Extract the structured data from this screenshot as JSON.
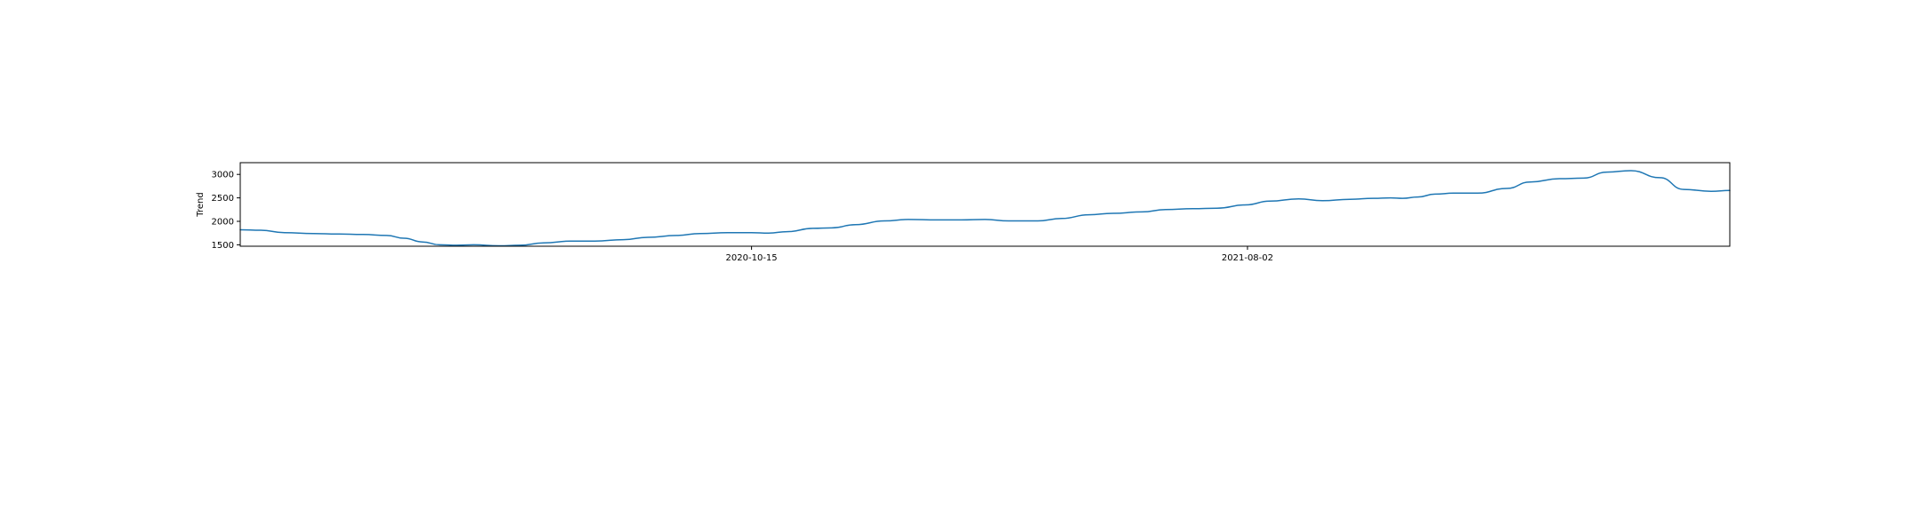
{
  "chart_data": {
    "type": "line",
    "title": "",
    "xlabel": "",
    "ylabel": "Trend",
    "grid": false,
    "legend": "none",
    "line_color": "#1f77b4",
    "x_range": [
      "2019-12-20",
      "2022-05-12"
    ],
    "ylim": [
      1470,
      3250
    ],
    "y_ticks": [
      1500,
      2000,
      2500,
      3000
    ],
    "x_ticks": [
      "2020-10-15",
      "2021-08-02"
    ],
    "series": [
      {
        "x": [
          "2019-12-20",
          "2020-01-01",
          "2020-01-15",
          "2020-02-01",
          "2020-02-15",
          "2020-03-01",
          "2020-03-15",
          "2020-03-25",
          "2020-04-05",
          "2020-04-15",
          "2020-04-25",
          "2020-05-05",
          "2020-05-20",
          "2020-06-01",
          "2020-06-15",
          "2020-07-01",
          "2020-07-15",
          "2020-08-01",
          "2020-08-15",
          "2020-09-01",
          "2020-09-15",
          "2020-10-01",
          "2020-10-15",
          "2020-10-25",
          "2020-11-05",
          "2020-11-20",
          "2020-12-01",
          "2020-12-15",
          "2021-01-01",
          "2021-01-15",
          "2021-02-01",
          "2021-02-15",
          "2021-03-01",
          "2021-03-15",
          "2021-04-01",
          "2021-04-15",
          "2021-05-01",
          "2021-05-15",
          "2021-06-01",
          "2021-06-15",
          "2021-07-01",
          "2021-07-15",
          "2021-08-01",
          "2021-08-15",
          "2021-09-01",
          "2021-09-15",
          "2021-10-01",
          "2021-10-15",
          "2021-10-25",
          "2021-11-01",
          "2021-11-10",
          "2021-11-20",
          "2021-12-01",
          "2021-12-15",
          "2022-01-01",
          "2022-01-15",
          "2022-02-01",
          "2022-02-15",
          "2022-03-01",
          "2022-03-15",
          "2022-04-01",
          "2022-04-15",
          "2022-05-01",
          "2022-05-12"
        ],
        "values": [
          1820,
          1810,
          1760,
          1740,
          1730,
          1720,
          1700,
          1640,
          1560,
          1500,
          1490,
          1500,
          1480,
          1490,
          1540,
          1580,
          1580,
          1610,
          1660,
          1700,
          1740,
          1760,
          1760,
          1750,
          1780,
          1850,
          1860,
          1930,
          2010,
          2040,
          2030,
          2030,
          2040,
          2010,
          2010,
          2060,
          2140,
          2170,
          2200,
          2250,
          2270,
          2280,
          2350,
          2430,
          2480,
          2440,
          2470,
          2490,
          2500,
          2490,
          2520,
          2580,
          2600,
          2600,
          2700,
          2840,
          2910,
          2920,
          3050,
          3080,
          2930,
          2680,
          2640,
          2660
        ]
      }
    ]
  }
}
